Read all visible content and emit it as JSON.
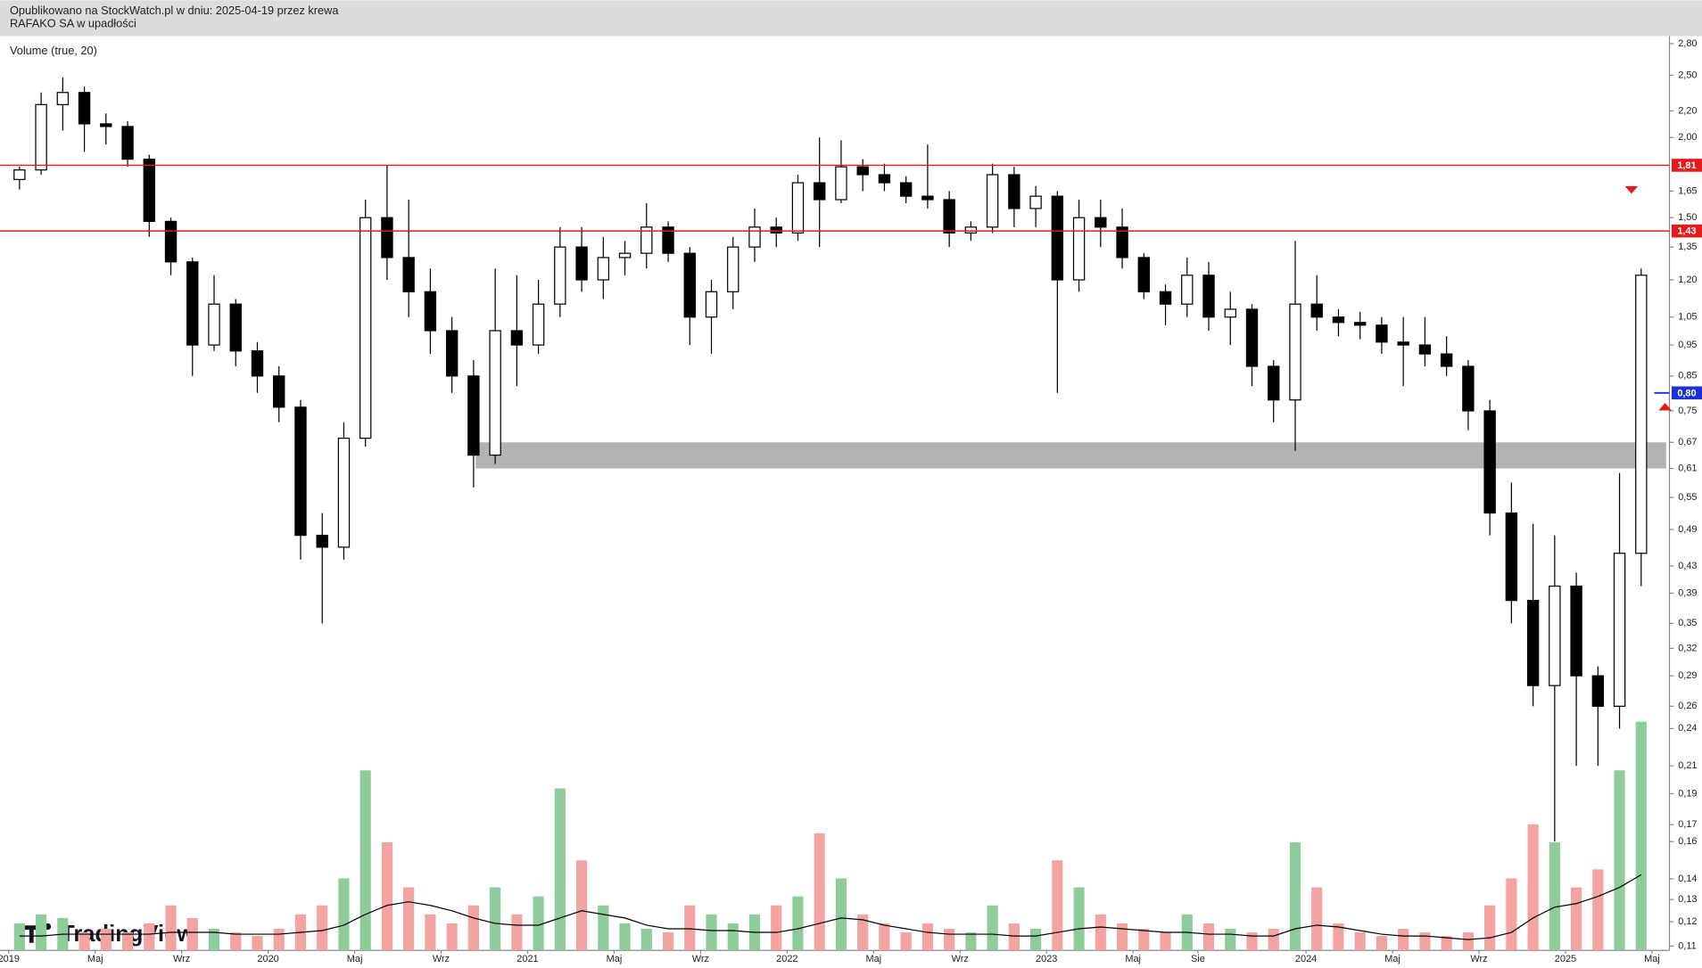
{
  "header": {
    "published": "Opublikowano na StockWatch.pl w dniu: 2025-04-19 przez krewa",
    "symbol": "RAFAKO SA w upadłości",
    "indicator": "Volume (true, 20)",
    "logo": "TradingView"
  },
  "chart_data": {
    "type": "candlestick",
    "log_scale": true,
    "up_color": "#ffffff",
    "down_color": "#000000",
    "volume_up_color": "#8fcc9b",
    "volume_down_color": "#f4a3a3",
    "volume_ma_color": "#000000",
    "x": [
      "2019-01",
      "2019-02",
      "2019-03",
      "2019-04",
      "2019-05",
      "2019-06",
      "2019-07",
      "2019-08",
      "2019-09",
      "2019-10",
      "2019-11",
      "2019-12",
      "2020-01",
      "2020-02",
      "2020-03",
      "2020-04",
      "2020-05",
      "2020-06",
      "2020-07",
      "2020-08",
      "2020-09",
      "2020-10",
      "2020-11",
      "2020-12",
      "2021-01",
      "2021-02",
      "2021-03",
      "2021-04",
      "2021-05",
      "2021-06",
      "2021-07",
      "2021-08",
      "2021-09",
      "2021-10",
      "2021-11",
      "2021-12",
      "2022-01",
      "2022-02",
      "2022-03",
      "2022-04",
      "2022-05",
      "2022-06",
      "2022-07",
      "2022-08",
      "2022-09",
      "2022-10",
      "2022-11",
      "2022-12",
      "2023-01",
      "2023-02",
      "2023-03",
      "2023-04",
      "2023-05",
      "2023-06",
      "2023-07",
      "2023-08",
      "2023-09",
      "2023-10",
      "2023-11",
      "2023-12",
      "2024-01",
      "2024-02",
      "2024-03",
      "2024-04",
      "2024-05",
      "2024-06",
      "2024-07",
      "2024-08",
      "2024-09",
      "2024-10",
      "2024-11",
      "2024-12",
      "2025-01",
      "2025-02",
      "2025-03",
      "2025-04"
    ],
    "open": [
      1.72,
      1.78,
      2.25,
      2.35,
      2.1,
      2.08,
      1.85,
      1.48,
      1.28,
      0.95,
      1.1,
      0.93,
      0.85,
      0.76,
      0.48,
      0.46,
      0.68,
      1.5,
      1.3,
      1.15,
      1.0,
      0.85,
      0.64,
      1.0,
      0.95,
      1.1,
      1.35,
      1.2,
      1.3,
      1.32,
      1.45,
      1.32,
      1.05,
      1.15,
      1.35,
      1.45,
      1.42,
      1.7,
      1.6,
      1.8,
      1.75,
      1.7,
      1.62,
      1.6,
      1.42,
      1.45,
      1.75,
      1.55,
      1.62,
      1.2,
      1.5,
      1.45,
      1.3,
      1.15,
      1.1,
      1.22,
      1.05,
      1.08,
      0.88,
      0.78,
      1.1,
      1.05,
      1.03,
      1.02,
      0.96,
      0.95,
      0.92,
      0.88,
      0.75,
      0.52,
      0.38,
      0.28,
      0.4,
      0.29,
      0.26,
      0.45
    ],
    "high": [
      1.8,
      2.35,
      2.48,
      2.4,
      2.18,
      2.12,
      1.88,
      1.5,
      1.3,
      1.22,
      1.12,
      0.96,
      0.88,
      0.78,
      0.52,
      0.72,
      1.6,
      1.81,
      1.6,
      1.25,
      1.05,
      0.9,
      1.25,
      1.22,
      1.2,
      1.45,
      1.45,
      1.4,
      1.38,
      1.58,
      1.48,
      1.35,
      1.2,
      1.4,
      1.55,
      1.5,
      1.75,
      2.0,
      1.98,
      1.85,
      1.82,
      1.74,
      1.95,
      1.65,
      1.48,
      1.82,
      1.8,
      1.68,
      1.65,
      1.6,
      1.6,
      1.55,
      1.32,
      1.18,
      1.3,
      1.28,
      1.15,
      1.1,
      0.9,
      1.38,
      1.22,
      1.08,
      1.07,
      1.05,
      1.05,
      1.05,
      0.98,
      0.9,
      0.78,
      0.58,
      0.5,
      0.48,
      0.42,
      0.3,
      0.6,
      1.25
    ],
    "low": [
      1.66,
      1.75,
      2.05,
      1.9,
      1.95,
      1.8,
      1.4,
      1.22,
      0.85,
      0.93,
      0.88,
      0.8,
      0.72,
      0.44,
      0.35,
      0.44,
      0.66,
      1.2,
      1.05,
      0.92,
      0.8,
      0.57,
      0.62,
      0.82,
      0.92,
      1.05,
      1.15,
      1.12,
      1.22,
      1.25,
      1.28,
      0.95,
      0.92,
      1.08,
      1.28,
      1.35,
      1.38,
      1.35,
      1.58,
      1.65,
      1.65,
      1.58,
      1.55,
      1.35,
      1.38,
      1.42,
      1.45,
      1.45,
      0.8,
      1.15,
      1.35,
      1.25,
      1.12,
      1.02,
      1.05,
      1.0,
      0.95,
      0.82,
      0.72,
      0.65,
      1.0,
      0.98,
      0.97,
      0.92,
      0.82,
      0.88,
      0.85,
      0.7,
      0.48,
      0.35,
      0.26,
      0.16,
      0.21,
      0.21,
      0.24,
      0.4
    ],
    "close": [
      1.78,
      2.25,
      2.35,
      2.1,
      2.08,
      1.85,
      1.48,
      1.28,
      0.95,
      1.1,
      0.93,
      0.85,
      0.76,
      0.48,
      0.46,
      0.68,
      1.5,
      1.3,
      1.15,
      1.0,
      0.85,
      0.64,
      1.0,
      0.95,
      1.1,
      1.35,
      1.2,
      1.3,
      1.32,
      1.45,
      1.32,
      1.05,
      1.15,
      1.35,
      1.45,
      1.42,
      1.7,
      1.6,
      1.8,
      1.75,
      1.7,
      1.62,
      1.6,
      1.42,
      1.45,
      1.75,
      1.55,
      1.62,
      1.2,
      1.5,
      1.45,
      1.3,
      1.15,
      1.1,
      1.22,
      1.05,
      1.08,
      0.88,
      0.78,
      1.1,
      1.05,
      1.03,
      1.02,
      0.96,
      0.95,
      0.92,
      0.88,
      0.75,
      0.52,
      0.38,
      0.28,
      0.4,
      0.29,
      0.26,
      0.45,
      1.22
    ],
    "volume": [
      15,
      20,
      18,
      10,
      12,
      10,
      15,
      25,
      18,
      12,
      10,
      8,
      12,
      20,
      25,
      40,
      100,
      60,
      35,
      20,
      15,
      25,
      35,
      20,
      30,
      90,
      50,
      25,
      15,
      12,
      10,
      25,
      20,
      15,
      20,
      25,
      30,
      65,
      40,
      20,
      15,
      10,
      15,
      12,
      10,
      25,
      15,
      12,
      50,
      35,
      20,
      15,
      12,
      10,
      20,
      15,
      12,
      10,
      12,
      60,
      35,
      15,
      10,
      8,
      12,
      10,
      8,
      10,
      25,
      40,
      70,
      60,
      35,
      45,
      100,
      127
    ],
    "volume_ma": [
      8,
      8,
      9,
      9,
      9,
      9,
      9,
      10,
      10,
      10,
      9,
      9,
      9,
      10,
      11,
      14,
      20,
      25,
      27,
      25,
      22,
      18,
      15,
      14,
      14,
      18,
      22,
      20,
      18,
      14,
      12,
      12,
      11,
      11,
      10,
      10,
      12,
      15,
      18,
      17,
      14,
      12,
      10,
      9,
      9,
      9,
      8,
      8,
      10,
      12,
      13,
      12,
      11,
      10,
      10,
      9,
      9,
      8,
      8,
      12,
      14,
      13,
      11,
      9,
      8,
      8,
      7,
      6,
      7,
      10,
      18,
      24,
      26,
      30,
      35,
      42
    ],
    "xlim": [
      "2019-01",
      "2025-06"
    ],
    "xticks": [
      {
        "value": "2019-01",
        "label": "2019"
      },
      {
        "value": "2019-05",
        "label": "Maj"
      },
      {
        "value": "2019-09",
        "label": "Wrz"
      },
      {
        "value": "2020-01",
        "label": "2020"
      },
      {
        "value": "2020-05",
        "label": "Maj"
      },
      {
        "value": "2020-09",
        "label": "Wrz"
      },
      {
        "value": "2021-01",
        "label": "2021"
      },
      {
        "value": "2021-05",
        "label": "Maj"
      },
      {
        "value": "2021-09",
        "label": "Wrz"
      },
      {
        "value": "2022-01",
        "label": "2022"
      },
      {
        "value": "2022-05",
        "label": "Maj"
      },
      {
        "value": "2022-09",
        "label": "Wrz"
      },
      {
        "value": "2023-01",
        "label": "2023"
      },
      {
        "value": "2023-05",
        "label": "Maj"
      },
      {
        "value": "2023-08",
        "label": "Sie"
      },
      {
        "value": "2024-01",
        "label": "2024"
      },
      {
        "value": "2024-05",
        "label": "Maj"
      },
      {
        "value": "2024-09",
        "label": "Wrz"
      },
      {
        "value": "2025-01",
        "label": "2025"
      },
      {
        "value": "2025-05",
        "label": "Maj"
      }
    ],
    "ylim": [
      0.11,
      2.8
    ],
    "yticks": [
      {
        "value": 2.8,
        "label": "2,80"
      },
      {
        "value": 2.5,
        "label": "2,50"
      },
      {
        "value": 2.2,
        "label": "2,20"
      },
      {
        "value": 2.0,
        "label": "2,00"
      },
      {
        "value": 1.65,
        "label": "1,65"
      },
      {
        "value": 1.5,
        "label": "1,50"
      },
      {
        "value": 1.35,
        "label": "1,35"
      },
      {
        "value": 1.2,
        "label": "1,20"
      },
      {
        "value": 1.05,
        "label": "1,05"
      },
      {
        "value": 0.95,
        "label": "0,95"
      },
      {
        "value": 0.85,
        "label": "0,85"
      },
      {
        "value": 0.75,
        "label": "0,75"
      },
      {
        "value": 0.67,
        "label": "0,67"
      },
      {
        "value": 0.61,
        "label": "0,61"
      },
      {
        "value": 0.55,
        "label": "0,55"
      },
      {
        "value": 0.49,
        "label": "0,49"
      },
      {
        "value": 0.43,
        "label": "0,43"
      },
      {
        "value": 0.39,
        "label": "0,39"
      },
      {
        "value": 0.35,
        "label": "0,35"
      },
      {
        "value": 0.32,
        "label": "0,32"
      },
      {
        "value": 0.29,
        "label": "0,29"
      },
      {
        "value": 0.26,
        "label": "0,26"
      },
      {
        "value": 0.24,
        "label": "0,24"
      },
      {
        "value": 0.21,
        "label": "0,21"
      },
      {
        "value": 0.19,
        "label": "0,19"
      },
      {
        "value": 0.17,
        "label": "0,17"
      },
      {
        "value": 0.16,
        "label": "0,16"
      },
      {
        "value": 0.14,
        "label": "0,14"
      },
      {
        "value": 0.13,
        "label": "0,13"
      },
      {
        "value": 0.12,
        "label": "0,12"
      },
      {
        "value": 0.11,
        "label": "0,11"
      }
    ],
    "levels": [
      {
        "value": 1.81,
        "label": "1,81",
        "color": "#e51b1b",
        "line": true
      },
      {
        "value": 1.43,
        "label": "1,43",
        "color": "#e51b1b",
        "line": true
      },
      {
        "value": 0.8,
        "label": "0,80",
        "color": "#1d2fd6",
        "line": false
      }
    ],
    "zone": {
      "from": 0.61,
      "to": 0.67,
      "start": "2020-11",
      "color": "#b3b3b3"
    },
    "arrows": [
      {
        "value": 1.66,
        "direction": "down",
        "color": "#e51b1b"
      },
      {
        "value": 0.76,
        "direction": "up",
        "color": "#e51b1b"
      }
    ]
  }
}
